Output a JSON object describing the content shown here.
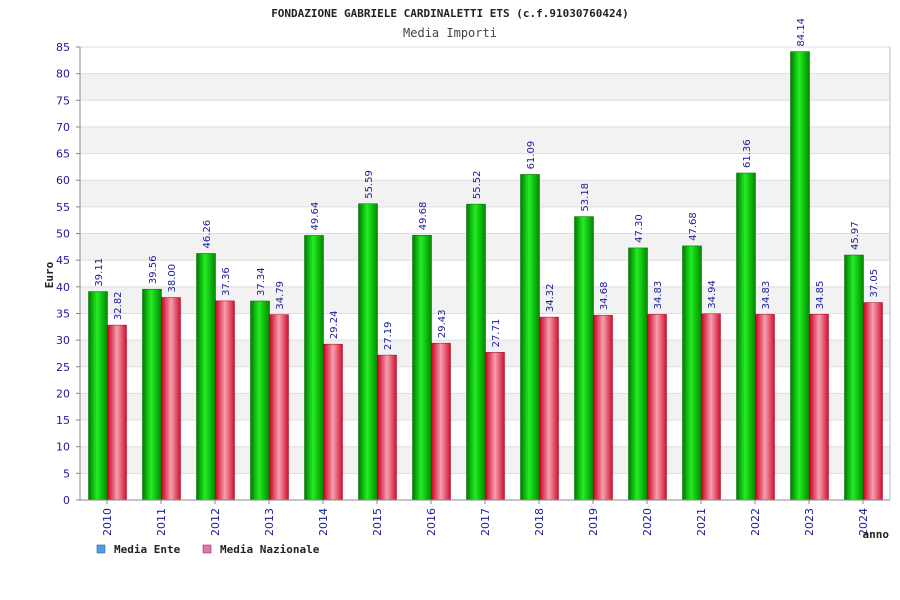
{
  "chart_data": {
    "type": "bar",
    "title": "FONDAZIONE GABRIELE CARDINALETTI ETS (c.f.91030760424)",
    "subtitle": "Media Importi",
    "ylabel": "Euro",
    "xlabel": "anno",
    "ylim": [
      0,
      85
    ],
    "ytick_step": 5,
    "grid": true,
    "legend_position": "bottom-left",
    "categories": [
      "2010",
      "2011",
      "2012",
      "2013",
      "2014",
      "2015",
      "2016",
      "2017",
      "2018",
      "2019",
      "2020",
      "2021",
      "2022",
      "2023",
      "2024"
    ],
    "series": [
      {
        "name": "Media Ente",
        "color": "#00aa00",
        "legend_color": "#5599ee",
        "values": [
          39.11,
          39.56,
          46.26,
          37.34,
          49.64,
          55.59,
          49.68,
          55.52,
          61.09,
          53.18,
          47.3,
          47.68,
          61.36,
          84.14,
          45.97
        ],
        "labels": [
          "39.11",
          "39.56",
          "46.26",
          "37.34",
          "49.64",
          "55.59",
          "49.68",
          "55.52",
          "61.09",
          "53.18",
          "47.30",
          "47.68",
          "61.36",
          "84.14",
          "45.97"
        ]
      },
      {
        "name": "Media Nazionale",
        "color": "#dd1133",
        "legend_color": "#dd77aa",
        "values": [
          32.82,
          38.0,
          37.36,
          34.79,
          29.24,
          27.19,
          29.43,
          27.71,
          34.32,
          34.68,
          34.83,
          34.94,
          34.83,
          34.85,
          37.05
        ],
        "labels": [
          "32.82",
          "38.00",
          "37.36",
          "34.79",
          "29.24",
          "27.19",
          "29.43",
          "27.71",
          "34.32",
          "34.68",
          "34.83",
          "34.94",
          "34.83",
          "34.85",
          "37.05"
        ]
      }
    ]
  }
}
